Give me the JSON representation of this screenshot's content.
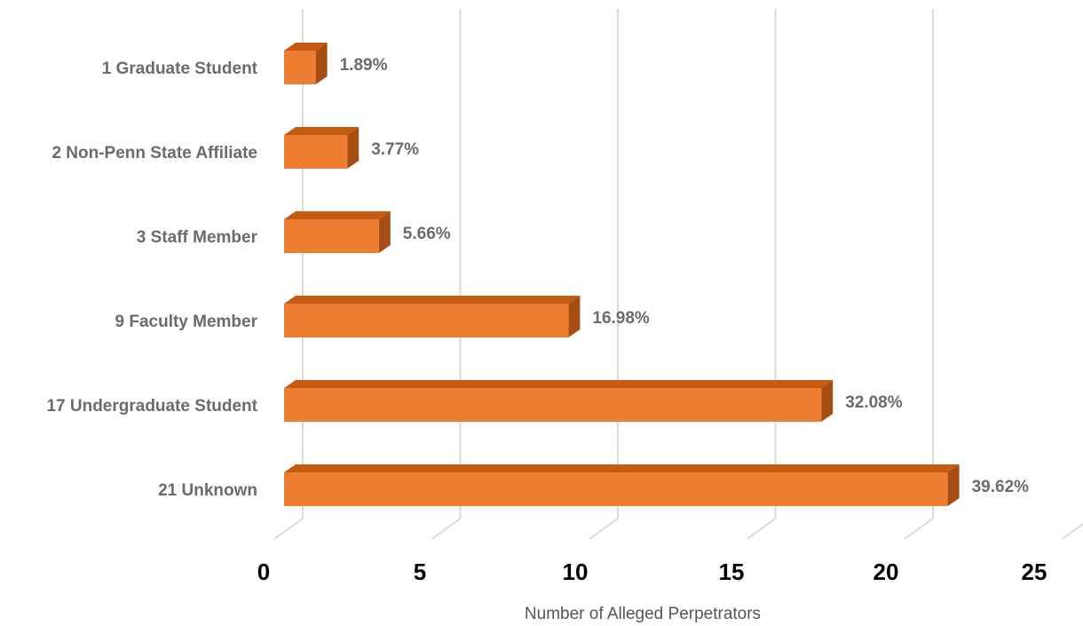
{
  "chart_data": {
    "type": "bar",
    "orientation": "horizontal",
    "style": "3d",
    "categories": [
      "1  Graduate Student",
      "2  Non-Penn State Affiliate",
      "3  Staff Member",
      "9  Faculty Member",
      "17  Undergraduate Student",
      "21  Unknown"
    ],
    "values": [
      1,
      2,
      3,
      9,
      17,
      21
    ],
    "data_labels": [
      "1.89%",
      "3.77%",
      "5.66%",
      "16.98%",
      "32.08%",
      "39.62%"
    ],
    "xlabel": "Number of Alleged Perpetrators",
    "ylabel": "",
    "xlim": [
      0,
      25
    ],
    "xticks": [
      0,
      5,
      10,
      15,
      20,
      25
    ],
    "xtick_labels": [
      "0",
      "5",
      "10",
      "15",
      "20",
      "25"
    ],
    "grid": true,
    "legend": "none",
    "colors": {
      "bar_front": "#ed7d31",
      "bar_top": "#c55a11",
      "bar_side": "#a84d12",
      "grid": "#d9d9d9"
    }
  }
}
